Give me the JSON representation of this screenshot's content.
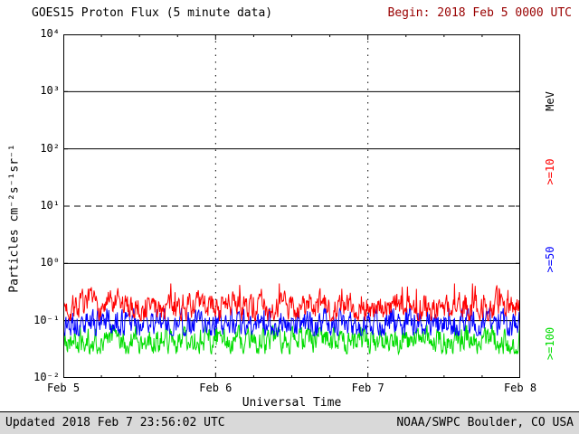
{
  "header": {
    "title": "GOES15 Proton Flux (5 minute data)",
    "begin": "Begin: 2018 Feb 5 0000 UTC"
  },
  "footer": {
    "updated": "Updated 2018 Feb 7 23:56:02 UTC",
    "source": "NOAA/SWPC Boulder, CO USA"
  },
  "colors": {
    "begin_text": "#990000",
    "footer_bg": "#d9d9d9",
    "axis": "#000000",
    "plot_bg": "#ffffff"
  },
  "chart_data": {
    "type": "line",
    "title": "GOES15 Proton Flux (5 minute data)",
    "xlabel": "Universal Time",
    "ylabel": "Particles cm⁻²s⁻¹sr⁻¹",
    "right_axis_unit": "MeV",
    "x_ticks": [
      "Feb 5",
      "Feb 6",
      "Feb 7",
      "Feb 8"
    ],
    "x_days": 3,
    "points_per_day": 288,
    "cadence_minutes": 5,
    "ylim_log10": [
      -2,
      4
    ],
    "y_tick_exponents": [
      4,
      3,
      2,
      1,
      0,
      -1,
      -2
    ],
    "y_tick_labels": [
      "10⁴",
      "10³",
      "10²",
      "10¹",
      "10⁰",
      "10⁻¹",
      "10⁻²"
    ],
    "grid": true,
    "gridlines": {
      "solid_horizontal_log10": [
        3,
        2,
        0,
        -1
      ],
      "dashed_horizontal_log10": [
        1
      ],
      "dotted_vertical_days": [
        1,
        2
      ]
    },
    "legend_position": "right",
    "noise": {
      "persistence": 0.55,
      "innovation": 0.38
    },
    "series": [
      {
        "name": ">=10 MeV proton flux",
        "label": ">=10",
        "color": "#ff0000",
        "approx_median_flux": 0.18,
        "approx_range": [
          0.1,
          0.45
        ],
        "log10_base": -0.76,
        "log10_min": -1.0,
        "log10_max": -0.35,
        "spike_prob": 0.06,
        "spike_mag": 0.3,
        "seed": 7
      },
      {
        "name": ">=50 MeV proton flux",
        "label": ">=50",
        "color": "#0000ff",
        "approx_median_flux": 0.09,
        "approx_range": [
          0.055,
          0.17
        ],
        "log10_base": -1.05,
        "log10_min": -1.26,
        "log10_max": -0.78,
        "spike_prob": 0.04,
        "spike_mag": 0.2,
        "seed": 13
      },
      {
        "name": ">=100 MeV proton flux",
        "label": ">=100",
        "color": "#00dd00",
        "approx_median_flux": 0.045,
        "approx_range": [
          0.027,
          0.085
        ],
        "log10_base": -1.35,
        "log10_min": -1.58,
        "log10_max": -1.08,
        "spike_prob": 0.04,
        "spike_mag": 0.18,
        "seed": 21
      }
    ]
  }
}
